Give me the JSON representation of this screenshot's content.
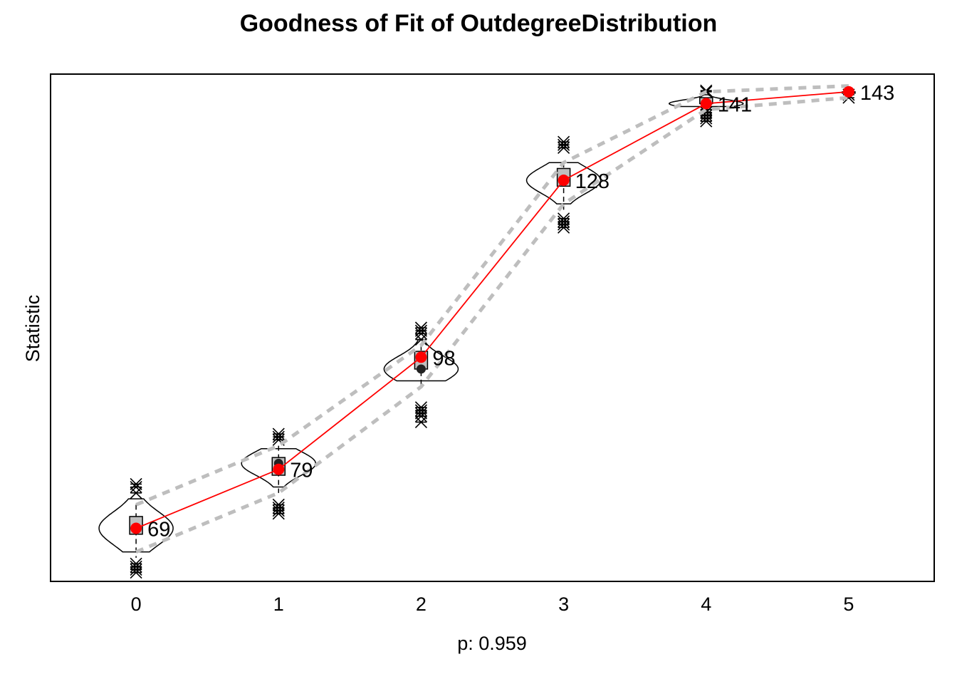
{
  "chart_data": {
    "type": "line",
    "title": "Goodness of Fit of OutdegreeDistribution",
    "xlabel": "p: 0.959",
    "ylabel": "Statistic",
    "x": [
      0,
      1,
      2,
      3,
      4,
      5
    ],
    "xlim": [
      -0.6,
      5.6
    ],
    "ylim": [
      60,
      146
    ],
    "grid": false,
    "legend": "none",
    "observed": {
      "values": [
        69,
        79,
        98,
        128,
        141,
        143
      ],
      "labels": [
        "69",
        "79",
        "98",
        "128",
        "141",
        "143"
      ],
      "color": "#ff0000"
    },
    "simulated": {
      "box_q1": [
        68,
        78,
        96,
        127,
        141,
        143
      ],
      "box_q3": [
        71,
        81,
        99,
        130,
        142,
        143
      ],
      "median": [
        69,
        80,
        96,
        128,
        141,
        143
      ],
      "whisker_low": [
        64,
        75,
        93,
        123,
        140,
        143
      ],
      "whisker_high": [
        73,
        83,
        100,
        131,
        142,
        143
      ],
      "outliers_low": [
        [
          61.5,
          62,
          62.5,
          63
        ],
        [
          71.5,
          72,
          72.5,
          73
        ],
        [
          87,
          88,
          88.5,
          89,
          89.5
        ],
        [
          120,
          120.5,
          121,
          121.5
        ],
        [
          138,
          138.5,
          139,
          139.5,
          140
        ],
        [
          142,
          142.5
        ]
      ],
      "outliers_high": [
        [
          75,
          76,
          76.5
        ],
        [
          84,
          84.5,
          85
        ],
        [
          101,
          102,
          102.5,
          103
        ],
        [
          133.5,
          134,
          134.5
        ],
        [
          143,
          143.2
        ],
        []
      ],
      "violin_min": [
        65,
        76,
        94,
        124,
        140.5,
        143
      ],
      "violin_max": [
        74,
        82.5,
        101,
        131,
        142.5,
        143
      ],
      "violin_width": [
        0.26,
        0.26,
        0.26,
        0.26,
        0.26,
        0.05
      ],
      "violin_color": "#000000"
    },
    "band": {
      "lower": [
        65,
        75,
        93,
        124,
        140,
        142
      ],
      "upper": [
        73,
        83,
        100,
        131,
        143,
        144
      ],
      "color": "#bebebe"
    }
  }
}
